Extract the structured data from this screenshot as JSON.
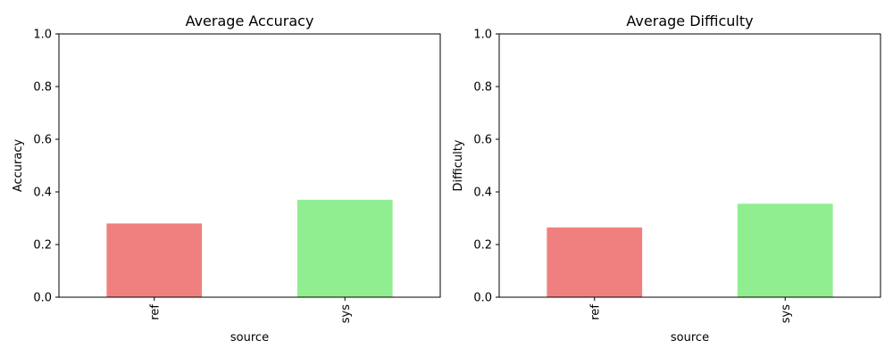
{
  "chart_data": [
    {
      "type": "bar",
      "title": "Average Accuracy",
      "xlabel": "source",
      "ylabel": "Accuracy",
      "categories": [
        "ref",
        "sys"
      ],
      "values": [
        0.28,
        0.37
      ],
      "colors": [
        "#f08080",
        "#90ee90"
      ],
      "ylim": [
        0,
        1.0
      ],
      "yticks": [
        "0.0",
        "0.2",
        "0.4",
        "0.6",
        "0.8",
        "1.0"
      ],
      "grid": false,
      "legend": "none"
    },
    {
      "type": "bar",
      "title": "Average Difficulty",
      "xlabel": "source",
      "ylabel": "Difficulty",
      "categories": [
        "ref",
        "sys"
      ],
      "values": [
        0.265,
        0.355
      ],
      "colors": [
        "#f08080",
        "#90ee90"
      ],
      "ylim": [
        0,
        1.0
      ],
      "yticks": [
        "0.0",
        "0.2",
        "0.4",
        "0.6",
        "0.8",
        "1.0"
      ],
      "grid": false,
      "legend": "none"
    }
  ]
}
